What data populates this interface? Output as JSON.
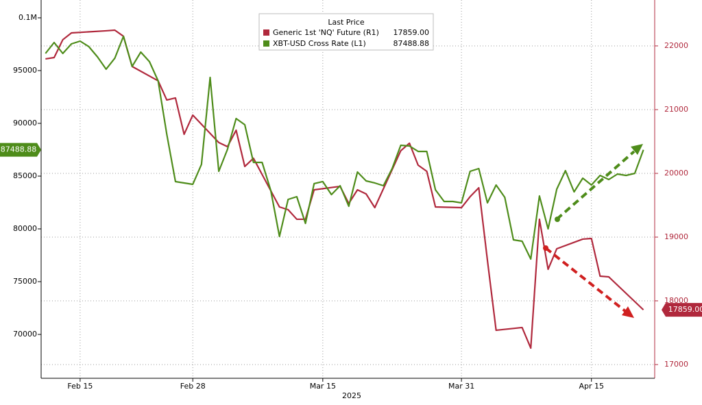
{
  "chart_data": {
    "type": "line",
    "legend_title": "Last Price",
    "x_axis_label": "2025",
    "xlim": [
      41.5,
      112.3
    ],
    "xticks": [
      {
        "value": 46,
        "label": "Feb 15"
      },
      {
        "value": 59,
        "label": "Feb 28"
      },
      {
        "value": 74,
        "label": "Mar 15"
      },
      {
        "value": 90,
        "label": "Mar 31"
      },
      {
        "value": 105,
        "label": "Apr 15"
      }
    ],
    "ylim": [
      65844,
      101688
    ],
    "yticks": [
      70000,
      75000,
      80000,
      85000,
      90000,
      95000,
      {
        "value": 100000,
        "label": "0.1M"
      }
    ],
    "y2lim": [
      16785,
      22720
    ],
    "y2ticks": [
      17000,
      18000,
      19000,
      20000,
      21000,
      22000
    ],
    "grid": true,
    "series": [
      {
        "name": "Generic 1st 'NQ' Future (R1)",
        "color": "#b0283c",
        "axis": "y2",
        "last_label": "17859.00",
        "x": [
          42,
          43,
          44,
          45,
          49,
          50,
          51,
          52,
          55,
          56,
          57,
          58,
          59,
          62,
          63,
          64,
          65,
          66,
          69,
          70,
          71,
          72,
          73,
          76,
          77,
          78,
          79,
          80,
          83,
          84,
          85,
          86,
          87,
          90,
          91,
          92,
          93,
          94,
          97,
          98,
          99,
          100,
          101,
          104,
          105,
          106,
          107,
          111
        ],
        "values": [
          21796,
          21817,
          22097,
          22204,
          22237,
          22247,
          22151,
          21677,
          21452,
          21151,
          21183,
          20613,
          20914,
          20484,
          20419,
          20677,
          20108,
          20237,
          19473,
          19430,
          19280,
          19280,
          19742,
          19796,
          19527,
          19742,
          19677,
          19462,
          20355,
          20473,
          20129,
          20032,
          19473,
          19462,
          19634,
          19774,
          18634,
          17538,
          17581,
          17258,
          19280,
          18495,
          18817,
          18968,
          18978,
          18387,
          18376,
          17859
        ]
      },
      {
        "name": "XBT-USD Cross Rate (L1)",
        "color": "#4e8c1a",
        "axis": "y",
        "last_label": "87488.88",
        "x": [
          42,
          43,
          44,
          45,
          46,
          47,
          48,
          49,
          50,
          51,
          52,
          53,
          54,
          55,
          56,
          57,
          58,
          59,
          60,
          61,
          62,
          63,
          64,
          65,
          66,
          67,
          68,
          69,
          70,
          71,
          72,
          73,
          74,
          75,
          76,
          77,
          78,
          79,
          80,
          81,
          82,
          83,
          84,
          85,
          86,
          87,
          88,
          89,
          90,
          91,
          92,
          93,
          94,
          95,
          96,
          97,
          98,
          99,
          100,
          101,
          102,
          103,
          104,
          105,
          106,
          107,
          108,
          109,
          110,
          111
        ],
        "values": [
          96623,
          97662,
          96623,
          97532,
          97792,
          97273,
          96299,
          95130,
          96169,
          98247,
          95390,
          96753,
          95844,
          94026,
          88961,
          84481,
          84351,
          84221,
          86104,
          94351,
          85455,
          87532,
          90455,
          89870,
          86299,
          86299,
          83636,
          79286,
          82792,
          83052,
          80519,
          84286,
          84481,
          83247,
          84091,
          82143,
          85390,
          84545,
          84351,
          84091,
          85714,
          87922,
          87857,
          87338,
          87338,
          83701,
          82597,
          82597,
          82468,
          85455,
          85714,
          82468,
          84156,
          82987,
          78961,
          78831,
          77143,
          83117,
          80000,
          83766,
          85519,
          83506,
          84805,
          84156,
          85065,
          84675,
          85195,
          85065,
          85260,
          87488.88
        ]
      }
    ]
  }
}
